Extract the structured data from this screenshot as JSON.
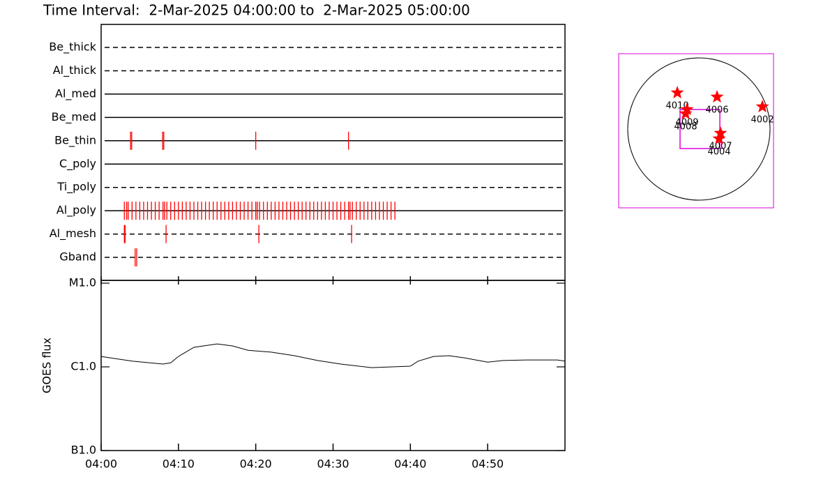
{
  "chart_data": [
    {
      "type": "timeline",
      "title": "Time Interval:  2-Mar-2025 04:00:00 to  2-Mar-2025 05:00:00",
      "xlim": [
        0,
        60
      ],
      "color": "#ff0000",
      "rows": [
        {
          "name": "Be_thick",
          "style": "dashed",
          "times": []
        },
        {
          "name": "Al_thick",
          "style": "dashed",
          "times": []
        },
        {
          "name": "Al_med",
          "style": "solid",
          "times": []
        },
        {
          "name": "Be_med",
          "style": "solid",
          "times": []
        },
        {
          "name": "Be_thin",
          "style": "solid",
          "times": [
            3.8,
            3.95,
            7.95,
            8.1,
            20.0,
            32.0
          ]
        },
        {
          "name": "C_poly",
          "style": "solid",
          "times": []
        },
        {
          "name": "Ti_poly",
          "style": "dashed",
          "times": []
        },
        {
          "name": "Al_poly",
          "style": "solid",
          "times": [
            3.0,
            3.3,
            3.5,
            4.0,
            4.5,
            5.0,
            5.5,
            6.0,
            6.5,
            7.0,
            7.5,
            8.0,
            8.2,
            8.5,
            9.0,
            9.5,
            10.0,
            10.5,
            11.0,
            11.5,
            12.0,
            12.5,
            13.0,
            13.5,
            14.0,
            14.5,
            15.0,
            15.5,
            16.0,
            16.5,
            17.0,
            17.5,
            18.0,
            18.5,
            19.0,
            19.5,
            20.0,
            20.2,
            20.5,
            21.0,
            21.5,
            22.0,
            22.5,
            23.0,
            23.5,
            24.0,
            24.5,
            25.0,
            25.5,
            26.0,
            26.5,
            27.0,
            27.5,
            28.0,
            28.5,
            29.0,
            29.5,
            30.0,
            30.5,
            31.0,
            31.5,
            32.0,
            32.2,
            32.5,
            33.0,
            33.5,
            34.0,
            34.5,
            35.0,
            35.5,
            36.0,
            36.5,
            37.0,
            37.5,
            38.0
          ]
        },
        {
          "name": "Al_mesh",
          "style": "dashed",
          "times": [
            3.0,
            3.1,
            8.4,
            20.4,
            32.4
          ]
        },
        {
          "name": "Gband",
          "style": "dashed",
          "times": [
            4.4,
            4.6
          ]
        }
      ]
    },
    {
      "type": "line",
      "ylabel": "GOES flux",
      "color": "#000000",
      "log_y": true,
      "xlim": [
        0,
        60
      ],
      "ylim": [
        1e-07,
        1.08e-05
      ],
      "xticks": [
        {
          "value": 0,
          "label": "04:00"
        },
        {
          "value": 10,
          "label": "04:10"
        },
        {
          "value": 20,
          "label": "04:20"
        },
        {
          "value": 30,
          "label": "04:30"
        },
        {
          "value": 40,
          "label": "04:40"
        },
        {
          "value": 50,
          "label": "04:50"
        }
      ],
      "yticks": [
        {
          "value": 1e-07,
          "label": "B1.0"
        },
        {
          "value": 1e-06,
          "label": "C1.0"
        },
        {
          "value": 1e-05,
          "label": "M1.0"
        }
      ],
      "x": [
        0,
        4,
        8,
        9,
        10,
        12,
        15,
        17,
        19,
        22,
        25,
        28,
        31,
        35,
        40,
        41,
        43,
        45,
        47,
        50,
        52,
        55,
        59,
        60
      ],
      "values": [
        1.33e-06,
        1.17e-06,
        1.08e-06,
        1.12e-06,
        1.33e-06,
        1.71e-06,
        1.88e-06,
        1.78e-06,
        1.58e-06,
        1.5e-06,
        1.36e-06,
        1.19e-06,
        1.08e-06,
        9.8e-07,
        1.02e-06,
        1.17e-06,
        1.33e-06,
        1.36e-06,
        1.28e-06,
        1.14e-06,
        1.19e-06,
        1.21e-06,
        1.21e-06,
        1.17e-06
      ]
    },
    {
      "type": "scatter",
      "color": "#ff0000",
      "box_color": "#dd00dd",
      "xlim": [
        -1082,
        1007
      ],
      "ylim": [
        -1063,
        1016
      ],
      "solar_radius": 960,
      "fov": {
        "x": [
          -254,
          283
        ],
        "y": [
          -263,
          263
        ]
      },
      "points": [
        {
          "label": "4010",
          "x": -291,
          "y": 489
        },
        {
          "label": "4009",
          "x": -160,
          "y": 263
        },
        {
          "label": "4008",
          "x": -179,
          "y": 207
        },
        {
          "label": "4006",
          "x": 245,
          "y": 433
        },
        {
          "label": "4002",
          "x": 857,
          "y": 301
        },
        {
          "label": "4007",
          "x": 292,
          "y": -56
        },
        {
          "label": "4004",
          "x": 273,
          "y": -132
        }
      ]
    }
  ]
}
